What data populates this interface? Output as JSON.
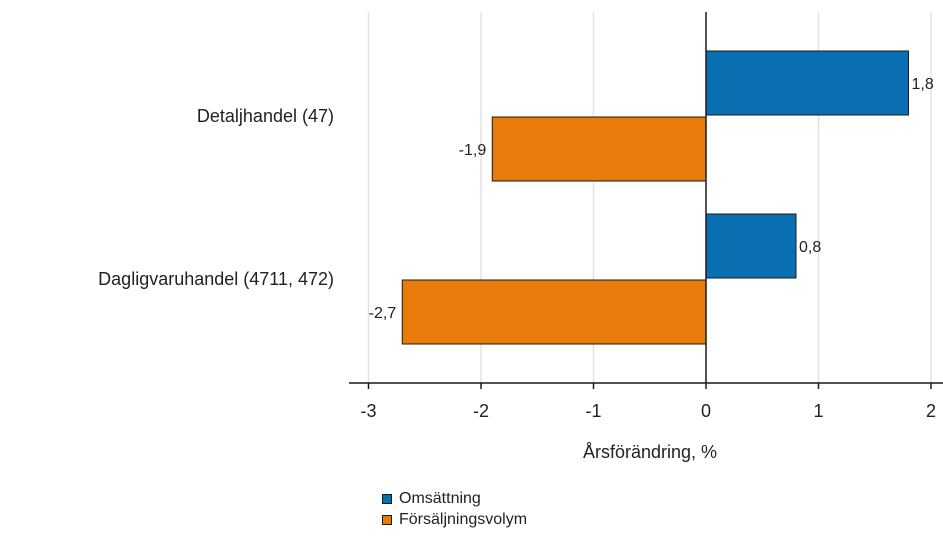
{
  "chart_data": {
    "type": "bar",
    "orientation": "horizontal",
    "categories": [
      "Detaljhandel (47)",
      "Dagligvaruhandel (4711, 472)"
    ],
    "series": [
      {
        "name": "Omsättning",
        "color": "#0a6fb0",
        "values": [
          1.8,
          0.8
        ],
        "value_labels": [
          "1,8",
          "0,8"
        ]
      },
      {
        "name": "Försäljningsvolym",
        "color": "#e87b0a",
        "values": [
          -1.9,
          -2.7
        ],
        "value_labels": [
          "-1,9",
          "-2,7"
        ]
      }
    ],
    "xlabel": "Årsförändring, %",
    "xlim": [
      -3.2,
      2.1
    ],
    "x_ticks": [
      -3,
      -2,
      -1,
      0,
      1,
      2
    ],
    "x_tick_labels": [
      "-3",
      "-2",
      "-1",
      "0",
      "1",
      "2"
    ],
    "grid": "vertical",
    "legend_position": "bottom"
  }
}
